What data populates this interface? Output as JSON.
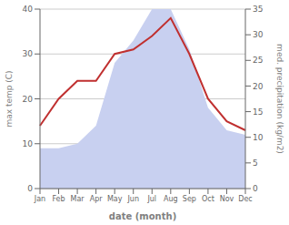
{
  "chart_data": {
    "type": "line",
    "xlabel": "date (month)",
    "ylabel": "max temp (C)",
    "y2label": "med. precipitation (kg/m2)",
    "categories": [
      "Jan",
      "Feb",
      "Mar",
      "Apr",
      "May",
      "Jun",
      "Jul",
      "Aug",
      "Sep",
      "Oct",
      "Nov",
      "Dec"
    ],
    "series": [
      {
        "type": "area",
        "color": "#c8d0f0",
        "values": [
          9,
          9,
          10,
          14,
          28,
          33,
          40,
          40,
          31,
          18,
          13,
          12
        ]
      },
      {
        "type": "line",
        "color": "#c03030",
        "values": [
          14,
          20,
          24,
          24,
          30,
          31,
          34,
          38,
          30,
          20,
          15,
          13
        ]
      }
    ],
    "ylim": [
      0,
      40
    ],
    "yticks": [
      0,
      10,
      20,
      30,
      40
    ],
    "y2lim": [
      0,
      35
    ],
    "y2ticks": [
      0,
      5,
      10,
      15,
      20,
      25,
      30,
      35
    ],
    "grid": true
  }
}
